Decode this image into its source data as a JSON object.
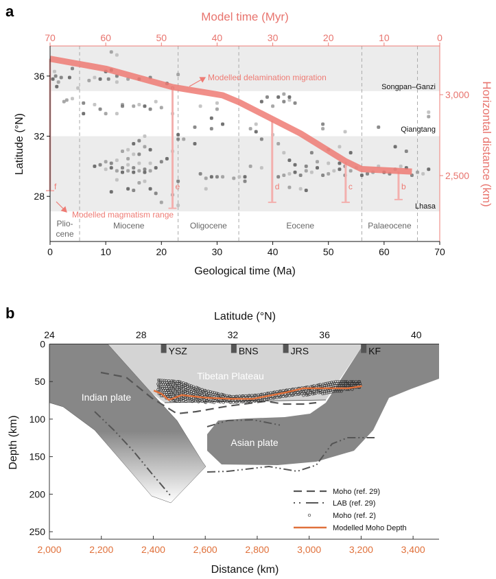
{
  "panel_labels": {
    "a": "a",
    "b": "b"
  },
  "colors": {
    "salmon": "#ee7b74",
    "salmon_light": "#f3b0ae",
    "orange": "#e0703a",
    "dark_grey": "#878787",
    "light_grey": "#d4d4d4",
    "band_grey": "#ececec"
  },
  "chart_data": [
    {
      "type": "scatter",
      "xlabel": "Geological time (Ma)",
      "x2label": "Model time (Myr)",
      "ylabel": "Latitude (°N)",
      "y2label": "Horizontal distance (km)",
      "xlim": [
        0,
        70
      ],
      "x2lim": [
        70,
        0
      ],
      "ylim": [
        25,
        38
      ],
      "y2lim": [
        2093,
        3301
      ],
      "x_ticks": [
        "0",
        "10",
        "20",
        "30",
        "40",
        "50",
        "60",
        "70"
      ],
      "x2_ticks": [
        "70",
        "60",
        "50",
        "40",
        "30",
        "20",
        "10",
        "0"
      ],
      "y_ticks": [
        "28",
        "32",
        "36"
      ],
      "y2_ticks": [
        "2,500",
        "3,000"
      ],
      "regions": [
        {
          "name": "Songpan–Ganzi",
          "lat_range": [
            35,
            38
          ],
          "shaded": true
        },
        {
          "name": "Qiangtang",
          "lat_range": [
            32,
            35
          ],
          "shaded": false
        },
        {
          "name": "Lhasa",
          "lat_range": [
            27,
            32
          ],
          "shaded": true
        }
      ],
      "epochs": [
        {
          "name": "Plio-",
          "name2": "cene",
          "range": [
            0,
            5.3
          ]
        },
        {
          "name": "Miocene",
          "range": [
            5.3,
            23
          ]
        },
        {
          "name": "Oligocene",
          "range": [
            23,
            33.9
          ]
        },
        {
          "name": "Eocene",
          "range": [
            33.9,
            56
          ]
        },
        {
          "name": "Palaeocene",
          "range": [
            56,
            66
          ]
        }
      ],
      "annotations": {
        "delamination": "Modelled delamination migration",
        "magmatism": "Modelled magmatism range"
      },
      "delamination_line_ma_km": [
        [
          0,
          3222
        ],
        [
          10,
          3160
        ],
        [
          22,
          3047
        ],
        [
          31,
          2996
        ],
        [
          34,
          2953
        ],
        [
          45,
          2760
        ],
        [
          53,
          2590
        ],
        [
          56,
          2540
        ],
        [
          65,
          2525
        ]
      ],
      "magmatism_ranges": [
        {
          "label": "f",
          "ma": 0,
          "top_km": 3222,
          "bottom_km": 2407
        },
        {
          "label": "e",
          "ma": 22,
          "top_km": 3047,
          "bottom_km": 2298
        },
        {
          "label": "d",
          "ma": 39.9,
          "top_km": 2840,
          "bottom_km": 2335
        },
        {
          "label": "c",
          "ma": 53.1,
          "top_km": 2585,
          "bottom_km": 2335
        },
        {
          "label": "b",
          "ma": 62.6,
          "top_km": 2525,
          "bottom_km": 2352
        }
      ],
      "points_ma_lat": [
        [
          0.5,
          35.8
        ],
        [
          1,
          36
        ],
        [
          1.5,
          35.6
        ],
        [
          0.8,
          36.3
        ],
        [
          1.2,
          35.3
        ],
        [
          2,
          35.9
        ],
        [
          3,
          34.4
        ],
        [
          4,
          34.5
        ],
        [
          3.5,
          35.9
        ],
        [
          4,
          36.5
        ],
        [
          2.5,
          34.3
        ],
        [
          5,
          35.2
        ],
        [
          6,
          33.5
        ],
        [
          6,
          34.2
        ],
        [
          7,
          35.7
        ],
        [
          8,
          35.9
        ],
        [
          9,
          35.8
        ],
        [
          9,
          33.8
        ],
        [
          10,
          33.5
        ],
        [
          8,
          34.1
        ],
        [
          10,
          36.3
        ],
        [
          10.5,
          35.8
        ],
        [
          11,
          37.6
        ],
        [
          12,
          37.4
        ],
        [
          11,
          36.4
        ],
        [
          12,
          36
        ],
        [
          13,
          34.1
        ],
        [
          12,
          33.5
        ],
        [
          8,
          30
        ],
        [
          9,
          30.1
        ],
        [
          10,
          30.3
        ],
        [
          10,
          29.8
        ],
        [
          11,
          29.9
        ],
        [
          11,
          30.2
        ],
        [
          12,
          29.7
        ],
        [
          12,
          30.4
        ],
        [
          13,
          29.6
        ],
        [
          13,
          29.9
        ],
        [
          14,
          29.7
        ],
        [
          14,
          30.1
        ],
        [
          15,
          29.6
        ],
        [
          15,
          29.9
        ],
        [
          16,
          29.7
        ],
        [
          16,
          30.2
        ],
        [
          17,
          29.6
        ],
        [
          17,
          29.8
        ],
        [
          18,
          29.7
        ],
        [
          18,
          30.2
        ],
        [
          19,
          29.9
        ],
        [
          20,
          30.3
        ],
        [
          13,
          31
        ],
        [
          14,
          31.1
        ],
        [
          15,
          31.5
        ],
        [
          16,
          31.7
        ],
        [
          17,
          31.3
        ],
        [
          17,
          32
        ],
        [
          18,
          31.1
        ],
        [
          16,
          30.8
        ],
        [
          14,
          30.5
        ],
        [
          15,
          30.8
        ],
        [
          14,
          28.5
        ],
        [
          15,
          28.4
        ],
        [
          16,
          28.9
        ],
        [
          17,
          29
        ],
        [
          18,
          28.5
        ],
        [
          19,
          28.2
        ],
        [
          20,
          27.6
        ],
        [
          12,
          29.1
        ],
        [
          11,
          28.3
        ],
        [
          13,
          34
        ],
        [
          15,
          34
        ],
        [
          16,
          34.1
        ],
        [
          17,
          34
        ],
        [
          18,
          33.8
        ],
        [
          20,
          33.9
        ],
        [
          19,
          34.3
        ],
        [
          16,
          35.8
        ],
        [
          18,
          35.9
        ],
        [
          14,
          35.8
        ],
        [
          12,
          35.6
        ],
        [
          21,
          35.5
        ],
        [
          22,
          35.2
        ],
        [
          23,
          36.1
        ],
        [
          22,
          33.5
        ],
        [
          23,
          32.1
        ],
        [
          23,
          31.8
        ],
        [
          24,
          31.8
        ],
        [
          22,
          31
        ],
        [
          21,
          30.5
        ],
        [
          23,
          29
        ],
        [
          22,
          28.1
        ],
        [
          23,
          27.4
        ],
        [
          26,
          31.5
        ],
        [
          27,
          29.5
        ],
        [
          28,
          29.2
        ],
        [
          28,
          28.5
        ],
        [
          29,
          29.3
        ],
        [
          30,
          29.3
        ],
        [
          31,
          29.3
        ],
        [
          27,
          34
        ],
        [
          29,
          33.2
        ],
        [
          29,
          32.5
        ],
        [
          30,
          33.8
        ],
        [
          30,
          34.2
        ],
        [
          31,
          32.8
        ],
        [
          26,
          32.6
        ],
        [
          33,
          29.2
        ],
        [
          34,
          29.3
        ],
        [
          35,
          29.3
        ],
        [
          35,
          29
        ],
        [
          36,
          32.5
        ],
        [
          37,
          32.8
        ],
        [
          37,
          32.3
        ],
        [
          38,
          31.8
        ],
        [
          36,
          30
        ],
        [
          38,
          29.9
        ],
        [
          38,
          34.3
        ],
        [
          39,
          34.6
        ],
        [
          40,
          34
        ],
        [
          40,
          32.1
        ],
        [
          41,
          34.6
        ],
        [
          42,
          34.3
        ],
        [
          42,
          34.8
        ],
        [
          43,
          34.4
        ],
        [
          43,
          34.6
        ],
        [
          44,
          34.2
        ],
        [
          41,
          31.5
        ],
        [
          42,
          30.9
        ],
        [
          43,
          30.4
        ],
        [
          41,
          29.3
        ],
        [
          42,
          29.4
        ],
        [
          43,
          29.5
        ],
        [
          44,
          29.6
        ],
        [
          45,
          29.4
        ],
        [
          46,
          29.7
        ],
        [
          47,
          29.6
        ],
        [
          48,
          29.9
        ],
        [
          49,
          29.4
        ],
        [
          50,
          29.5
        ],
        [
          51,
          29.7
        ],
        [
          52,
          29.8
        ],
        [
          53,
          30
        ],
        [
          54,
          29.7
        ],
        [
          55,
          29.9
        ],
        [
          44,
          30.1
        ],
        [
          46,
          30
        ],
        [
          48,
          30.3
        ],
        [
          50,
          30.2
        ],
        [
          52,
          30.2
        ],
        [
          53,
          29.4
        ],
        [
          43,
          28.6
        ],
        [
          45,
          28.5
        ],
        [
          46,
          28.4
        ],
        [
          47,
          30.9
        ],
        [
          50,
          31.1
        ],
        [
          52,
          31.3
        ],
        [
          54,
          30.9
        ],
        [
          49,
          32.8
        ],
        [
          49,
          32.5
        ],
        [
          53,
          32.3
        ],
        [
          56,
          29.4
        ],
        [
          57,
          29.5
        ],
        [
          58,
          29.6
        ],
        [
          59,
          30
        ],
        [
          60,
          29.6
        ],
        [
          61,
          29.5
        ],
        [
          62,
          29.8
        ],
        [
          63,
          30
        ],
        [
          64,
          29.9
        ],
        [
          65,
          29.4
        ],
        [
          66,
          29.6
        ],
        [
          67,
          29.5
        ],
        [
          68,
          29.8
        ],
        [
          59,
          32.6
        ],
        [
          68,
          33.3
        ],
        [
          68,
          33.6
        ],
        [
          62,
          31.3
        ],
        [
          64,
          31
        ]
      ]
    },
    {
      "type": "line",
      "xlabel": "Distance (km)",
      "x2label": "Latitude (°N)",
      "ylabel": "Depth (km)",
      "xlim": [
        2000,
        3500
      ],
      "ylim": [
        260,
        0
      ],
      "x_ticks": [
        "2,000",
        "2,200",
        "2,400",
        "2,600",
        "2,800",
        "3,000",
        "3,200",
        "3,400"
      ],
      "x2_ticks": [
        "24",
        "28",
        "32",
        "36",
        "40"
      ],
      "y_ticks": [
        "0",
        "50",
        "100",
        "150",
        "200",
        "250"
      ],
      "structures": [
        {
          "name": "YSZ",
          "km": 2440
        },
        {
          "name": "BNS",
          "km": 2710
        },
        {
          "name": "JRS",
          "km": 2910
        },
        {
          "name": "KF",
          "km": 3210
        }
      ],
      "labels": {
        "plateau": "Tibetan Plateau",
        "indian": "Indian plate",
        "asian": "Asian plate"
      },
      "legend": [
        {
          "name": "Moho (ref. 29)",
          "style": "dashed"
        },
        {
          "name": "LAB (ref. 29)",
          "style": "dash-dot"
        },
        {
          "name": "Moho (ref. 2)",
          "style": "circles"
        },
        {
          "name": "Modelled Moho Depth",
          "style": "solid-orange"
        }
      ],
      "modelled_moho_km_depth": [
        [
          2402,
          62
        ],
        [
          2430,
          66
        ],
        [
          2460,
          74.5
        ],
        [
          2509,
          68
        ],
        [
          2600,
          71.5
        ],
        [
          2700,
          73
        ],
        [
          2783,
          73
        ],
        [
          2904,
          65
        ],
        [
          2977,
          59
        ],
        [
          3087,
          59
        ],
        [
          3148,
          59
        ],
        [
          3203,
          56
        ]
      ],
      "moho_ref2_band": {
        "upper": [
          [
            2420,
            48
          ],
          [
            2500,
            50
          ],
          [
            2600,
            62
          ],
          [
            2700,
            70
          ],
          [
            2800,
            68
          ],
          [
            2900,
            62
          ],
          [
            3000,
            57
          ],
          [
            3100,
            50
          ],
          [
            3200,
            50
          ]
        ],
        "lower": [
          [
            2420,
            68
          ],
          [
            2470,
            76
          ],
          [
            2600,
            78
          ],
          [
            2700,
            78
          ],
          [
            2800,
            76
          ],
          [
            2900,
            70
          ],
          [
            3000,
            68
          ],
          [
            3100,
            65
          ],
          [
            3200,
            58
          ]
        ]
      }
    }
  ]
}
